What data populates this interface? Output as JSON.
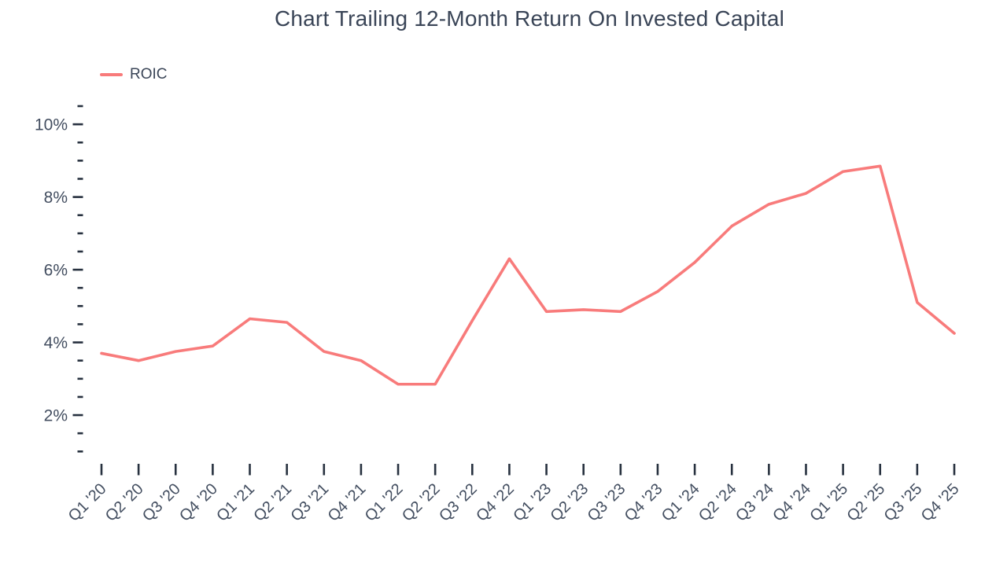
{
  "chart_data": {
    "type": "line",
    "title": "Chart Trailing 12-Month Return On Invested Capital",
    "categories": [
      "Q1 '20",
      "Q2 '20",
      "Q3 '20",
      "Q4 '20",
      "Q1 '21",
      "Q2 '21",
      "Q3 '21",
      "Q4 '21",
      "Q1 '22",
      "Q2 '22",
      "Q3 '22",
      "Q4 '22",
      "Q1 '23",
      "Q2 '23",
      "Q3 '23",
      "Q4 '23",
      "Q1 '24",
      "Q2 '24",
      "Q3 '24",
      "Q4 '24",
      "Q1 '25",
      "Q2 '25",
      "Q3 '25",
      "Q4 '25"
    ],
    "series": [
      {
        "name": "ROIC",
        "color": "#F87B7B",
        "values": [
          3.7,
          3.5,
          3.75,
          3.9,
          4.65,
          4.55,
          3.75,
          3.5,
          2.85,
          2.85,
          4.6,
          6.3,
          4.85,
          4.9,
          4.85,
          5.4,
          6.2,
          7.2,
          7.8,
          8.1,
          8.7,
          8.85,
          5.1,
          4.25
        ]
      }
    ],
    "xlabel": "",
    "ylabel": "",
    "yaxis": {
      "unit": "%",
      "ylim": [
        1,
        10.5
      ],
      "major_ticks": [
        2,
        4,
        6,
        8,
        10
      ],
      "major_tick_labels": [
        "2%",
        "4%",
        "6%",
        "8%",
        "10%"
      ],
      "minor_step": 0.5
    },
    "grid": false,
    "legend_position": "top-left",
    "colors": {
      "line": "#F87B7B",
      "title_text": "#3a4557",
      "axis_label_text": "#434e60",
      "tick_mark": "#27313f",
      "background": "#ffffff"
    }
  }
}
